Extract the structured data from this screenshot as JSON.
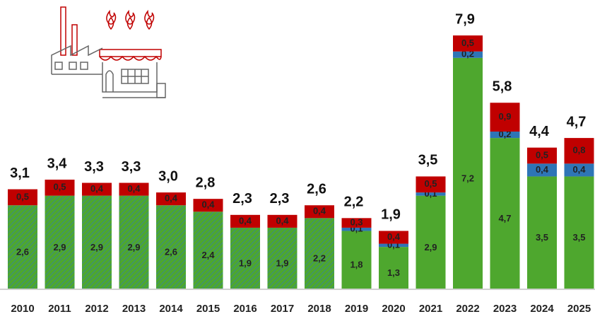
{
  "chart_data": {
    "type": "stacked-bar",
    "categories": [
      "2010",
      "2011",
      "2012",
      "2013",
      "2014",
      "2015",
      "2016",
      "2017",
      "2018",
      "2019",
      "2020",
      "2021",
      "2022",
      "2023",
      "2024",
      "2025"
    ],
    "hatched": [
      true,
      true,
      true,
      true,
      true,
      true,
      true,
      true,
      true,
      false,
      false,
      false,
      false,
      false,
      false,
      false
    ],
    "series": [
      {
        "color": "#4ea72e",
        "values": [
          2.6,
          2.9,
          2.9,
          2.9,
          2.6,
          2.4,
          1.9,
          1.9,
          2.2,
          1.8,
          1.3,
          2.9,
          7.2,
          4.7,
          3.5,
          3.5
        ],
        "value_labels": [
          "2,6",
          "2,9",
          "2,9",
          "2,9",
          "2,6",
          "2,4",
          "1,9",
          "1,9",
          "2,2",
          "1,8",
          "1,3",
          "2,9",
          "7,2",
          "4,7",
          "3,5",
          "3,5"
        ]
      },
      {
        "color": "#2e75b6",
        "values": [
          null,
          null,
          null,
          null,
          null,
          null,
          null,
          null,
          null,
          0.1,
          0.1,
          0.1,
          0.2,
          0.2,
          0.4,
          0.4
        ],
        "value_labels": [
          null,
          null,
          null,
          null,
          null,
          null,
          null,
          null,
          null,
          "0,1",
          "0,1",
          "0,1",
          "0,2",
          "0,2",
          "0,4",
          "0,4"
        ]
      },
      {
        "color": "#c00000",
        "values": [
          0.5,
          0.5,
          0.4,
          0.4,
          0.4,
          0.4,
          0.4,
          0.4,
          0.4,
          0.3,
          0.4,
          0.5,
          0.5,
          0.9,
          0.5,
          0.8
        ],
        "value_labels": [
          "0,5",
          "0,5",
          "0,4",
          "0,4",
          "0,4",
          "0,4",
          "0,4",
          "0,4",
          "0,4",
          "0,3",
          "0,4",
          "0,5",
          "0,5",
          "0,9",
          "0,5",
          "0,8"
        ]
      }
    ],
    "totals": {
      "values": [
        3.1,
        3.4,
        3.3,
        3.3,
        3.0,
        2.8,
        2.3,
        2.3,
        2.6,
        2.2,
        1.9,
        3.5,
        7.9,
        5.8,
        4.4,
        4.7
      ],
      "value_labels": [
        "3,1",
        "3,4",
        "3,3",
        "3,3",
        "3,0",
        "2,8",
        "2,3",
        "2,3",
        "2,6",
        "2,2",
        "1,9",
        "3,5",
        "7,9",
        "5,8",
        "4,4",
        "4,7"
      ]
    }
  }
}
